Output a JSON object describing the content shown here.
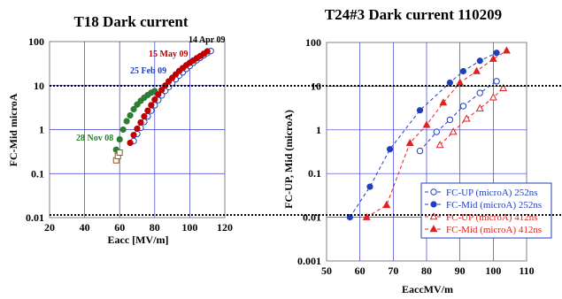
{
  "chart_data": [
    {
      "type": "scatter",
      "title": "T18 Dark current",
      "xlabel": "Eacc [MV/m]",
      "ylabel": "FC-Mid microA",
      "xlim": [
        20,
        120
      ],
      "ylim": [
        0.01,
        100
      ],
      "yscale": "log",
      "grid": true,
      "x_ticks": [
        "20",
        "40",
        "60",
        "80",
        "100",
        "120"
      ],
      "y_ticks": [
        "0.01",
        "0.1",
        "1",
        "10",
        "100"
      ],
      "annotations": [
        {
          "text": "14 Apr 09",
          "x": 104,
          "y": 79,
          "color": "#000000"
        },
        {
          "text": "15 May 09",
          "x": 87,
          "y": 37,
          "color": "#c00000"
        },
        {
          "text": "25 Feb 09",
          "x": 89,
          "y": 14,
          "color": "#1f3fbf"
        },
        {
          "text": "28 Nov 08",
          "x": 33,
          "y": 0.58,
          "color": "#2e7d32"
        }
      ],
      "series": [
        {
          "color": "#2e7d32",
          "marker": "filled-circle",
          "x": [
            58,
            60,
            62,
            64,
            66,
            68,
            70,
            72,
            74,
            76,
            78,
            80
          ],
          "y": [
            0.35,
            0.6,
            1.0,
            1.55,
            2.1,
            2.9,
            3.7,
            4.5,
            5.3,
            6.1,
            6.9,
            7.5
          ]
        },
        {
          "color": "#1f3fbf",
          "marker": "open-circle",
          "x": [
            68,
            70,
            72,
            74,
            76,
            78,
            80,
            82,
            84,
            86,
            88,
            90,
            92,
            94,
            96,
            98,
            100,
            102,
            104,
            106,
            108,
            110,
            112
          ],
          "y": [
            0.55,
            0.8,
            1.1,
            1.5,
            2.0,
            2.7,
            3.6,
            4.7,
            6.0,
            7.6,
            9.3,
            11.5,
            14,
            17,
            20,
            24,
            28,
            33,
            38,
            43,
            49,
            55,
            61
          ]
        },
        {
          "color": "#c00000",
          "marker": "filled-circle",
          "x": [
            66,
            68,
            70,
            72,
            74,
            76,
            78,
            80,
            82,
            84,
            86,
            88,
            90,
            92,
            94,
            96,
            98,
            100,
            102,
            104,
            106,
            108,
            110
          ],
          "y": [
            0.5,
            0.75,
            1.05,
            1.45,
            2.0,
            2.7,
            3.6,
            4.8,
            6.3,
            8.0,
            10,
            12.5,
            15,
            18,
            21.5,
            25,
            29,
            33,
            37,
            42,
            47,
            53,
            60
          ]
        },
        {
          "color": "#8b5a2b",
          "marker": "open-square",
          "x": [
            58,
            59,
            60
          ],
          "y": [
            0.2,
            0.25,
            0.3
          ]
        }
      ]
    },
    {
      "type": "line",
      "title": "T24#3 Dark current 110209",
      "xlabel": "EaccMV/m",
      "ylabel": "FC-UP, Mid (microA)",
      "xlim": [
        50,
        110
      ],
      "ylim": [
        0.001,
        100
      ],
      "yscale": "log",
      "grid": true,
      "legend": "bottom-right",
      "x_ticks": [
        "50",
        "60",
        "70",
        "80",
        "90",
        "100",
        "110"
      ],
      "y_ticks": [
        "0.001",
        "0.01",
        "0.1",
        "1",
        "10",
        "100"
      ],
      "series": [
        {
          "name": "FC-UP (microA) 252ns",
          "color": "#1f3fbf",
          "marker": "open-circle",
          "x": [
            78,
            83,
            87,
            91,
            96,
            101
          ],
          "y": [
            0.33,
            0.9,
            1.7,
            3.5,
            7.0,
            13
          ]
        },
        {
          "name": "FC-Mid (microA) 252ns",
          "color": "#1f3fbf",
          "marker": "filled-circle",
          "x": [
            57,
            63,
            69,
            78,
            87,
            91,
            96,
            101
          ],
          "y": [
            0.01,
            0.05,
            0.36,
            2.8,
            12,
            22,
            38,
            58
          ]
        },
        {
          "name": "FC-UP (microA) 412ns",
          "color": "#e02020",
          "marker": "open-triangle",
          "x": [
            84,
            88,
            92,
            96,
            100,
            103
          ],
          "y": [
            0.45,
            0.9,
            1.8,
            3.1,
            5.5,
            9.0
          ]
        },
        {
          "name": "FC-Mid (microA) 412ns",
          "color": "#e02020",
          "marker": "filled-triangle",
          "x": [
            62,
            68,
            75,
            80,
            85,
            90,
            95,
            100,
            104
          ],
          "y": [
            0.01,
            0.019,
            0.5,
            1.3,
            4.2,
            12,
            22,
            42,
            65
          ]
        }
      ]
    }
  ]
}
